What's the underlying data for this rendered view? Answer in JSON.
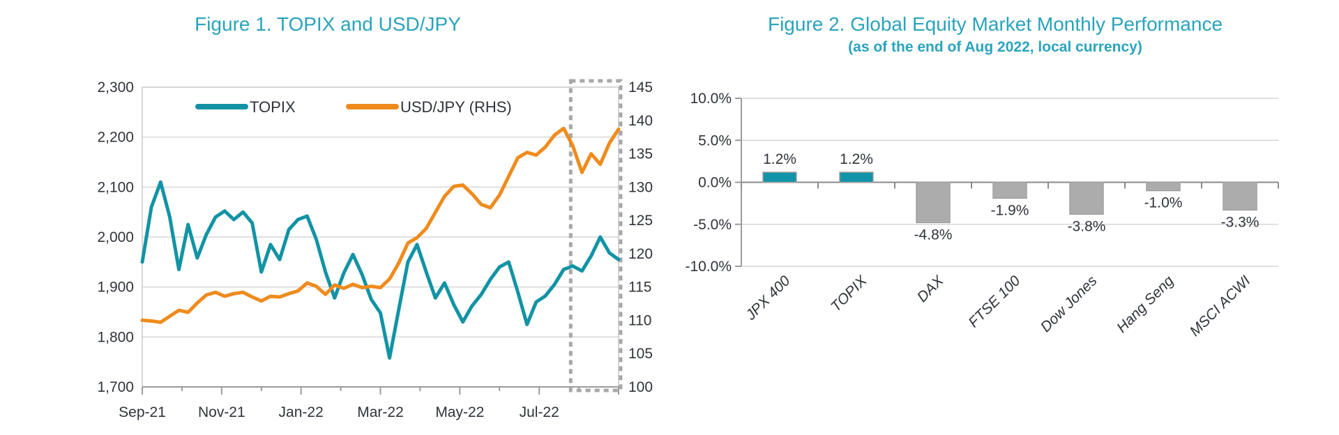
{
  "page": {
    "background": "#FFFFFF"
  },
  "theme": {
    "title_teal": "#2AA3BC",
    "text_color": "#30333B",
    "grid_color": "#D6D6D6",
    "plot_border_color": "#C8C8C8",
    "axis_color": "#9B9B9B",
    "zero_axis_color": "#8A8A8A",
    "highlight_box_color": "#A8A8A8"
  },
  "chart_data": [
    {
      "type": "line",
      "title": "Figure 1. TOPIX and USD/JPY",
      "x_months": 12,
      "x_start": "Sep-21",
      "x_end": "Aug-22",
      "x_tick_labels": [
        "Sep-21",
        "Nov-21",
        "Jan-22",
        "Mar-22",
        "May-22",
        "Jul-22"
      ],
      "left_axis": {
        "min": 1700,
        "max": 2300,
        "step": 100,
        "tick_labels": [
          "2,300",
          "2,200",
          "2,100",
          "2,000",
          "1,900",
          "1,800",
          "1,700"
        ]
      },
      "right_axis": {
        "min": 100,
        "max": 145,
        "step": 5,
        "tick_labels": [
          "145",
          "140",
          "135",
          "130",
          "125",
          "120",
          "115",
          "110",
          "105",
          "100"
        ]
      },
      "grid": true,
      "legend_position": "top-inside",
      "series": [
        {
          "name": "TOPIX",
          "axis": "left",
          "color": "#1293A5",
          "sampling": "weekly",
          "values": [
            1950,
            2060,
            2110,
            2040,
            1935,
            2025,
            1958,
            2005,
            2040,
            2052,
            2035,
            2050,
            2028,
            1930,
            1985,
            1955,
            2015,
            2035,
            2042,
            1995,
            1930,
            1878,
            1928,
            1965,
            1925,
            1875,
            1848,
            1758,
            1855,
            1950,
            1985,
            1930,
            1878,
            1908,
            1865,
            1830,
            1862,
            1885,
            1915,
            1940,
            1950,
            1890,
            1825,
            1870,
            1882,
            1905,
            1935,
            1942,
            1932,
            1962,
            2000,
            1968,
            1955
          ]
        },
        {
          "name": "USD/JPY (RHS)",
          "axis": "right",
          "color": "#EF8B1C",
          "sampling": "weekly",
          "values": [
            110.0,
            109.9,
            109.7,
            110.6,
            111.5,
            111.2,
            112.6,
            113.8,
            114.2,
            113.6,
            114.0,
            114.2,
            113.5,
            112.9,
            113.6,
            113.5,
            114.0,
            114.4,
            115.6,
            115.1,
            113.9,
            115.3,
            114.8,
            115.4,
            114.9,
            115.1,
            114.9,
            116.2,
            118.6,
            121.6,
            122.4,
            123.8,
            126.2,
            128.6,
            130.1,
            130.3,
            129.0,
            127.4,
            126.9,
            128.8,
            131.6,
            134.4,
            135.2,
            134.8,
            136.0,
            137.8,
            138.8,
            136.2,
            132.2,
            135.0,
            133.4,
            136.6,
            138.7
          ]
        }
      ],
      "highlight_box": {
        "label": "Aug-22 highlight",
        "color": "#A8A8A8",
        "from_week": 47,
        "to_week": 52
      }
    },
    {
      "type": "bar",
      "title": "Figure 2. Global Equity Market Monthly Performance",
      "subtitle": "(as of the end of Aug 2022, local currency)",
      "categories": [
        "JPX 400",
        "TOPIX",
        "DAX",
        "FTSE 100",
        "Dow Jones",
        "Hang Seng",
        "MSCI ACWI"
      ],
      "values": [
        1.2,
        1.2,
        -4.8,
        -1.9,
        -3.8,
        -1.0,
        -3.3
      ],
      "data_labels": [
        "1.2%",
        "1.2%",
        "-4.8%",
        "-1.9%",
        "-3.8%",
        "-1.0%",
        "-3.3%"
      ],
      "bar_colors": [
        "#1193A8",
        "#1193A8",
        "#ACACAC",
        "#ACACAC",
        "#ACACAC",
        "#ACACAC",
        "#ACACAC"
      ],
      "ylim": [
        -10,
        10
      ],
      "y_tick_values": [
        10,
        5,
        0,
        -5,
        -10
      ],
      "y_tick_labels": [
        "10.0%",
        "5.0%",
        "0.0%",
        "-5.0%",
        "-10.0%"
      ],
      "grid": true,
      "legend_position": "none"
    }
  ]
}
